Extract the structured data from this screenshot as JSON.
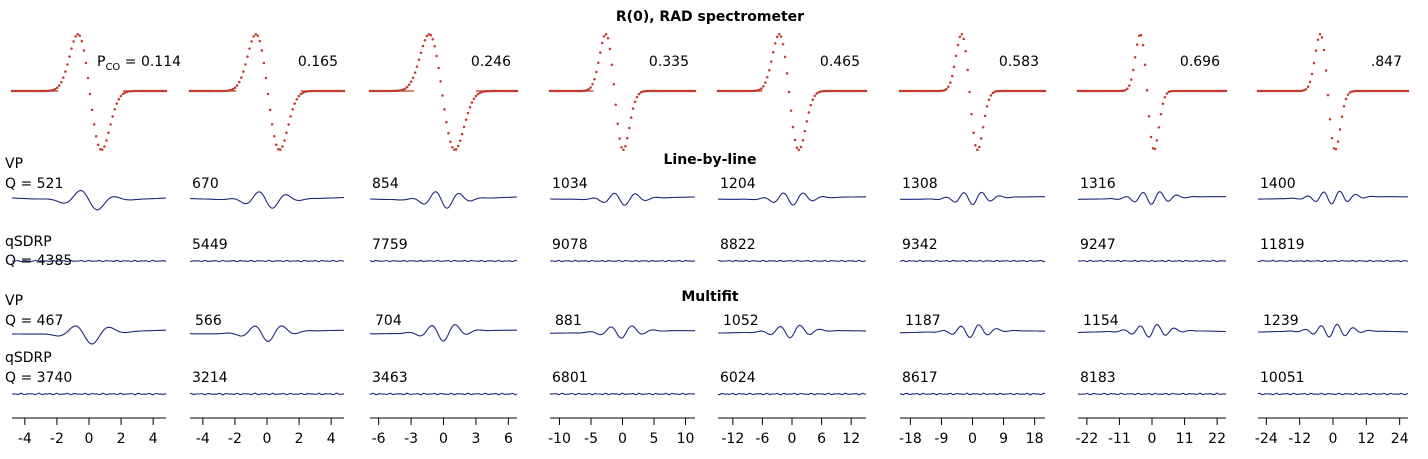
{
  "chart_data": {
    "type": "line",
    "title": "R(0), RAD spectrometer",
    "pressure_prefix": "P",
    "pressure_subscript": "CO",
    "pressure_eq": " = ",
    "pressures": [
      "0.114",
      "0.165",
      "0.246",
      "0.335",
      "0.465",
      "0.583",
      "0.696",
      ".847"
    ],
    "section_titles": {
      "line_by_line": "Line-by-line",
      "multifit": "Multifit"
    },
    "profile_labels": {
      "vp": "VP",
      "qsdrp": "qSDRP",
      "q_prefix": "Q = "
    },
    "line_by_line": {
      "vp_q": [
        "521",
        "670",
        "854",
        "1034",
        "1204",
        "1308",
        "1316",
        "1400"
      ],
      "qsdrp_q": [
        "4385",
        "5449",
        "7759",
        "9078",
        "8822",
        "9342",
        "9247",
        "11819"
      ]
    },
    "multifit": {
      "vp_q": [
        "467",
        "566",
        "704",
        "881",
        "1052",
        "1187",
        "1154",
        "1239"
      ],
      "qsdrp_q": [
        "3740",
        "3214",
        "3463",
        "6801",
        "6024",
        "8617",
        "8183",
        "10051"
      ]
    },
    "x_axes": [
      {
        "range": [
          -4.8,
          4.8
        ],
        "ticks": [
          "-4",
          "-2",
          "0",
          "2",
          "4"
        ]
      },
      {
        "range": [
          -4.8,
          4.8
        ],
        "ticks": [
          "-4",
          "-2",
          "0",
          "2",
          "4"
        ]
      },
      {
        "range": [
          -6.8,
          6.8
        ],
        "ticks": [
          "-6",
          "-3",
          "0",
          "3",
          "6"
        ]
      },
      {
        "range": [
          -11.5,
          11.5
        ],
        "ticks": [
          "-10",
          "-5",
          "0",
          "5",
          "10"
        ]
      },
      {
        "range": [
          -15,
          15
        ],
        "ticks": [
          "-12",
          "-6",
          "0",
          "6",
          "12"
        ]
      },
      {
        "range": [
          -21,
          21
        ],
        "ticks": [
          "-18",
          "-9",
          "0",
          "9",
          "18"
        ]
      },
      {
        "range": [
          -25,
          25
        ],
        "ticks": [
          "-22",
          "-11",
          "0",
          "11",
          "22"
        ]
      },
      {
        "range": [
          -27,
          27
        ],
        "ticks": [
          "-24",
          "-12",
          "0",
          "12",
          "24"
        ]
      }
    ],
    "series_colors": {
      "spectrum": "#c0392b",
      "residual": "#1f2a7a"
    }
  }
}
